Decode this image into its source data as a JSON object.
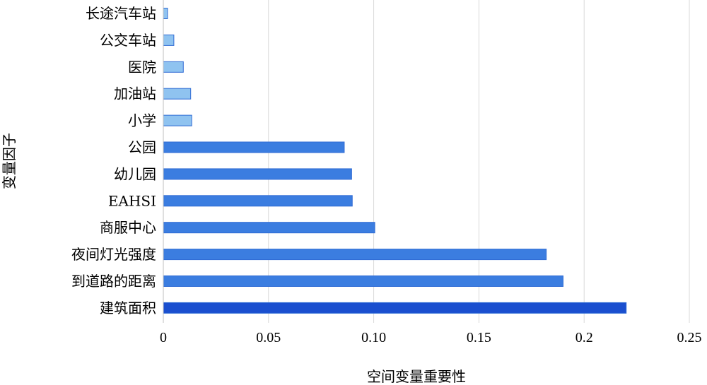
{
  "chart_data": {
    "type": "bar",
    "orientation": "horizontal",
    "categories": [
      "长途汽车站",
      "公交车站",
      "医院",
      "加油站",
      "小学",
      "公园",
      "幼儿园",
      "EAHSI",
      "商服中心",
      "夜间灯光强度",
      "到道路的距离",
      "建筑面积"
    ],
    "values": [
      0.002,
      0.005,
      0.0095,
      0.013,
      0.0135,
      0.086,
      0.0895,
      0.0898,
      0.1005,
      0.182,
      0.19,
      0.22
    ],
    "bar_colors": [
      "#8fc3f0",
      "#8fc3f0",
      "#8fc3f0",
      "#8fc3f0",
      "#8fc3f0",
      "#3b7de0",
      "#3b7de0",
      "#3b7de0",
      "#3b7de0",
      "#3b7de0",
      "#3b7de0",
      "#1a4fcf"
    ],
    "bar_edge_color": "#2f6bd4",
    "xlabel": "空间变量重要性",
    "ylabel": "变量因子",
    "xlim": [
      0,
      0.25
    ],
    "xticks": [
      0,
      0.05,
      0.1,
      0.15,
      0.2,
      0.25
    ],
    "xtick_labels": [
      "0",
      "0.05",
      "0.10",
      "0.15",
      "0.2",
      "0.25"
    ],
    "grid": "vertical",
    "grid_color": "#d9d9d9"
  }
}
